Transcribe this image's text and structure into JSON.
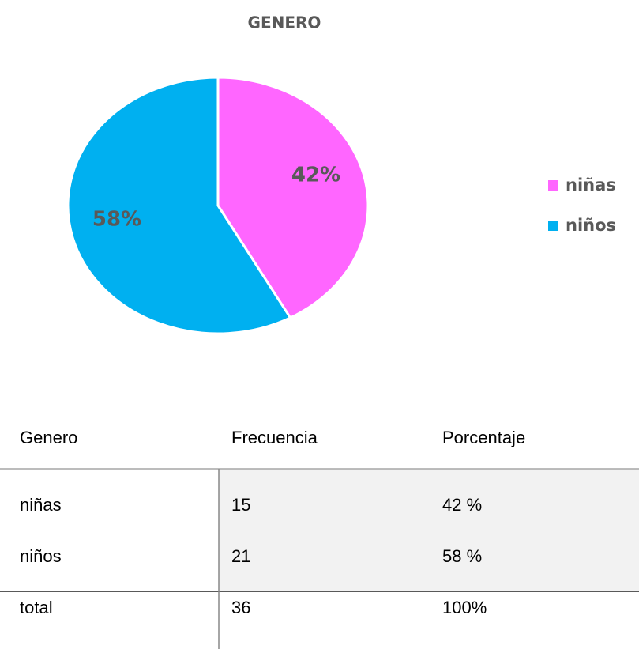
{
  "chart_data": {
    "type": "pie",
    "title": "GENERO",
    "categories": [
      "niñas",
      "niños"
    ],
    "values": [
      42,
      58
    ],
    "value_labels": [
      "42%",
      "58%"
    ],
    "colors": [
      "#ff66ff",
      "#00b0f0"
    ],
    "legend": "right"
  },
  "table": {
    "header": [
      "Genero",
      "Frecuencia",
      "Porcentaje"
    ],
    "rows": [
      [
        "niñas",
        "15",
        "42 %"
      ],
      [
        "niños",
        "21",
        "58 %"
      ],
      [
        "total",
        "36",
        "100%"
      ]
    ]
  }
}
